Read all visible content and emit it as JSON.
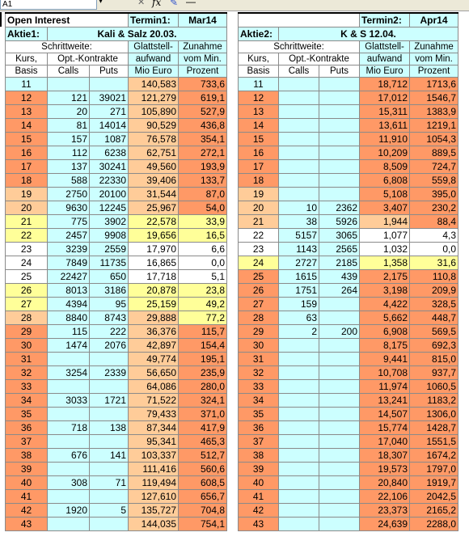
{
  "formula_bar": {
    "name_box": "A1",
    "fx": "fx"
  },
  "header": {
    "title": "Open Interest",
    "termin1_label": "Termin1:",
    "termin1_value": "Mar14",
    "termin2_label": "Termin2:",
    "termin2_value": "Apr14",
    "aktie1_label": "Aktie1:",
    "aktie1_value": "Kali & Salz 20.03.",
    "aktie2_label": "Aktie2:",
    "aktie2_value": "K & S 12.04."
  },
  "columns": {
    "schrittweite": "Schrittweite:",
    "glattstell": "Glattstell-",
    "zunahme": "Zunahme",
    "kurs": "Kurs,",
    "optkontrakte": "Opt.-Kontrakte",
    "aufwand": "aufwand",
    "vommin": "vom Min.",
    "basis": "Basis",
    "calls": "Calls",
    "puts": "Puts",
    "mioeuro": "Mio Euro",
    "prozent": "Prozent"
  },
  "left_rows": [
    {
      "k": "11",
      "c": "",
      "p": "",
      "g": "140,583",
      "z": "733,6",
      "kc": "cyan",
      "gc": "pink",
      "zc": "orange"
    },
    {
      "k": "12",
      "c": "121",
      "p": "39021",
      "g": "121,279",
      "z": "619,1",
      "kc": "orange",
      "gc": "pink",
      "zc": "orange"
    },
    {
      "k": "13",
      "c": "20",
      "p": "271",
      "g": "105,890",
      "z": "527,9",
      "kc": "orange",
      "gc": "pink",
      "zc": "orange"
    },
    {
      "k": "14",
      "c": "81",
      "p": "14014",
      "g": "90,529",
      "z": "436,8",
      "kc": "orange",
      "gc": "pink",
      "zc": "orange"
    },
    {
      "k": "15",
      "c": "157",
      "p": "1087",
      "g": "76,578",
      "z": "354,1",
      "kc": "orange",
      "gc": "pink",
      "zc": "orange"
    },
    {
      "k": "16",
      "c": "112",
      "p": "6238",
      "g": "62,751",
      "z": "272,1",
      "kc": "orange",
      "gc": "pink",
      "zc": "orange"
    },
    {
      "k": "17",
      "c": "137",
      "p": "30241",
      "g": "49,560",
      "z": "193,9",
      "kc": "orange",
      "gc": "pink",
      "zc": "orange"
    },
    {
      "k": "18",
      "c": "588",
      "p": "22330",
      "g": "39,406",
      "z": "133,7",
      "kc": "orange",
      "gc": "pink",
      "zc": "orange"
    },
    {
      "k": "19",
      "c": "2750",
      "p": "20100",
      "g": "31,544",
      "z": "87,0",
      "kc": "pink",
      "gc": "pink",
      "zc": "orange"
    },
    {
      "k": "20",
      "c": "9630",
      "p": "12245",
      "g": "25,967",
      "z": "54,0",
      "kc": "pink",
      "gc": "pink",
      "zc": "orange"
    },
    {
      "k": "21",
      "c": "775",
      "p": "3902",
      "g": "22,578",
      "z": "33,9",
      "kc": "yellow",
      "gc": "yellow",
      "zc": "yellow"
    },
    {
      "k": "22",
      "c": "2457",
      "p": "9908",
      "g": "19,656",
      "z": "16,5",
      "kc": "yellow",
      "gc": "yellow",
      "zc": "yellow"
    },
    {
      "k": "23",
      "c": "3239",
      "p": "2559",
      "g": "17,970",
      "z": "6,6",
      "kc": "white",
      "gc": "white",
      "zc": "white"
    },
    {
      "k": "24",
      "c": "7849",
      "p": "11735",
      "g": "16,865",
      "z": "0,0",
      "kc": "white",
      "gc": "white",
      "zc": "white"
    },
    {
      "k": "25",
      "c": "22427",
      "p": "650",
      "g": "17,718",
      "z": "5,1",
      "kc": "white",
      "gc": "white",
      "zc": "white"
    },
    {
      "k": "26",
      "c": "8013",
      "p": "3186",
      "g": "20,878",
      "z": "23,8",
      "kc": "yellow",
      "gc": "yellow",
      "zc": "yellow"
    },
    {
      "k": "27",
      "c": "4394",
      "p": "95",
      "g": "25,159",
      "z": "49,2",
      "kc": "yellow",
      "gc": "yellow",
      "zc": "yellow"
    },
    {
      "k": "28",
      "c": "8840",
      "p": "8743",
      "g": "29,888",
      "z": "77,2",
      "kc": "pink",
      "gc": "pink",
      "zc": "yellow"
    },
    {
      "k": "29",
      "c": "115",
      "p": "222",
      "g": "36,376",
      "z": "115,7",
      "kc": "orange",
      "gc": "pink",
      "zc": "orange"
    },
    {
      "k": "30",
      "c": "1474",
      "p": "2076",
      "g": "42,897",
      "z": "154,4",
      "kc": "orange",
      "gc": "pink",
      "zc": "orange"
    },
    {
      "k": "31",
      "c": "",
      "p": "",
      "g": "49,774",
      "z": "195,1",
      "kc": "orange",
      "gc": "pink",
      "zc": "orange"
    },
    {
      "k": "32",
      "c": "3254",
      "p": "2339",
      "g": "56,650",
      "z": "235,9",
      "kc": "orange",
      "gc": "pink",
      "zc": "orange"
    },
    {
      "k": "33",
      "c": "",
      "p": "",
      "g": "64,086",
      "z": "280,0",
      "kc": "orange",
      "gc": "pink",
      "zc": "orange"
    },
    {
      "k": "34",
      "c": "3033",
      "p": "1721",
      "g": "71,522",
      "z": "324,1",
      "kc": "orange",
      "gc": "pink",
      "zc": "orange"
    },
    {
      "k": "35",
      "c": "",
      "p": "",
      "g": "79,433",
      "z": "371,0",
      "kc": "orange",
      "gc": "pink",
      "zc": "orange"
    },
    {
      "k": "36",
      "c": "718",
      "p": "138",
      "g": "87,344",
      "z": "417,9",
      "kc": "orange",
      "gc": "pink",
      "zc": "orange"
    },
    {
      "k": "37",
      "c": "",
      "p": "",
      "g": "95,341",
      "z": "465,3",
      "kc": "orange",
      "gc": "pink",
      "zc": "orange"
    },
    {
      "k": "38",
      "c": "676",
      "p": "141",
      "g": "103,337",
      "z": "512,7",
      "kc": "orange",
      "gc": "pink",
      "zc": "orange"
    },
    {
      "k": "39",
      "c": "",
      "p": "",
      "g": "111,416",
      "z": "560,6",
      "kc": "orange",
      "gc": "pink",
      "zc": "orange"
    },
    {
      "k": "40",
      "c": "308",
      "p": "71",
      "g": "119,494",
      "z": "608,5",
      "kc": "orange",
      "gc": "pink",
      "zc": "orange"
    },
    {
      "k": "41",
      "c": "",
      "p": "",
      "g": "127,610",
      "z": "656,7",
      "kc": "orange",
      "gc": "pink",
      "zc": "orange"
    },
    {
      "k": "42",
      "c": "1920",
      "p": "5",
      "g": "135,727",
      "z": "704,8",
      "kc": "orange",
      "gc": "pink",
      "zc": "orange"
    },
    {
      "k": "43",
      "c": "",
      "p": "",
      "g": "144,035",
      "z": "754,1",
      "kc": "orange",
      "gc": "pink",
      "zc": "orange"
    }
  ],
  "right_rows": [
    {
      "k": "11",
      "c": "",
      "p": "",
      "g": "18,712",
      "z": "1713,6",
      "kc": "cyan",
      "gc": "orange",
      "zc": "orange"
    },
    {
      "k": "12",
      "c": "",
      "p": "",
      "g": "17,012",
      "z": "1546,7",
      "kc": "orange",
      "gc": "orange",
      "zc": "orange"
    },
    {
      "k": "13",
      "c": "",
      "p": "",
      "g": "15,311",
      "z": "1383,9",
      "kc": "orange",
      "gc": "orange",
      "zc": "orange"
    },
    {
      "k": "14",
      "c": "",
      "p": "",
      "g": "13,611",
      "z": "1219,1",
      "kc": "orange",
      "gc": "orange",
      "zc": "orange"
    },
    {
      "k": "15",
      "c": "",
      "p": "",
      "g": "11,910",
      "z": "1054,3",
      "kc": "orange",
      "gc": "orange",
      "zc": "orange"
    },
    {
      "k": "16",
      "c": "",
      "p": "",
      "g": "10,209",
      "z": "889,5",
      "kc": "orange",
      "gc": "orange",
      "zc": "orange"
    },
    {
      "k": "17",
      "c": "",
      "p": "",
      "g": "8,509",
      "z": "724,7",
      "kc": "orange",
      "gc": "orange",
      "zc": "orange"
    },
    {
      "k": "18",
      "c": "",
      "p": "",
      "g": "6,808",
      "z": "559,8",
      "kc": "orange",
      "gc": "orange",
      "zc": "orange"
    },
    {
      "k": "19",
      "c": "",
      "p": "",
      "g": "5,108",
      "z": "395,0",
      "kc": "pink",
      "gc": "orange",
      "zc": "orange"
    },
    {
      "k": "20",
      "c": "10",
      "p": "2362",
      "g": "3,407",
      "z": "230,2",
      "kc": "pink",
      "gc": "orange",
      "zc": "orange"
    },
    {
      "k": "21",
      "c": "38",
      "p": "5926",
      "g": "1,944",
      "z": "88,4",
      "kc": "pink",
      "gc": "pink",
      "zc": "orange"
    },
    {
      "k": "22",
      "c": "5157",
      "p": "3065",
      "g": "1,077",
      "z": "4,3",
      "kc": "white",
      "gc": "white",
      "zc": "white"
    },
    {
      "k": "23",
      "c": "1143",
      "p": "2565",
      "g": "1,032",
      "z": "0,0",
      "kc": "white",
      "gc": "white",
      "zc": "white"
    },
    {
      "k": "24",
      "c": "2727",
      "p": "2185",
      "g": "1,358",
      "z": "31,6",
      "kc": "yellow",
      "gc": "yellow",
      "zc": "yellow"
    },
    {
      "k": "25",
      "c": "1615",
      "p": "439",
      "g": "2,175",
      "z": "110,8",
      "kc": "orange",
      "gc": "orange",
      "zc": "orange"
    },
    {
      "k": "26",
      "c": "1751",
      "p": "264",
      "g": "3,198",
      "z": "209,9",
      "kc": "orange",
      "gc": "orange",
      "zc": "orange"
    },
    {
      "k": "27",
      "c": "159",
      "p": "",
      "g": "4,422",
      "z": "328,5",
      "kc": "orange",
      "gc": "orange",
      "zc": "orange"
    },
    {
      "k": "28",
      "c": "63",
      "p": "",
      "g": "5,662",
      "z": "448,7",
      "kc": "orange",
      "gc": "orange",
      "zc": "orange"
    },
    {
      "k": "29",
      "c": "2",
      "p": "200",
      "g": "6,908",
      "z": "569,5",
      "kc": "orange",
      "gc": "orange",
      "zc": "orange"
    },
    {
      "k": "30",
      "c": "",
      "p": "",
      "g": "8,175",
      "z": "692,3",
      "kc": "orange",
      "gc": "orange",
      "zc": "orange"
    },
    {
      "k": "31",
      "c": "",
      "p": "",
      "g": "9,441",
      "z": "815,0",
      "kc": "orange",
      "gc": "orange",
      "zc": "orange"
    },
    {
      "k": "32",
      "c": "",
      "p": "",
      "g": "10,708",
      "z": "937,7",
      "kc": "orange",
      "gc": "orange",
      "zc": "orange"
    },
    {
      "k": "33",
      "c": "",
      "p": "",
      "g": "11,974",
      "z": "1060,5",
      "kc": "orange",
      "gc": "orange",
      "zc": "orange"
    },
    {
      "k": "34",
      "c": "",
      "p": "",
      "g": "13,241",
      "z": "1183,2",
      "kc": "orange",
      "gc": "orange",
      "zc": "orange"
    },
    {
      "k": "35",
      "c": "",
      "p": "",
      "g": "14,507",
      "z": "1306,0",
      "kc": "orange",
      "gc": "orange",
      "zc": "orange"
    },
    {
      "k": "36",
      "c": "",
      "p": "",
      "g": "15,774",
      "z": "1428,7",
      "kc": "orange",
      "gc": "orange",
      "zc": "orange"
    },
    {
      "k": "37",
      "c": "",
      "p": "",
      "g": "17,040",
      "z": "1551,5",
      "kc": "orange",
      "gc": "orange",
      "zc": "orange"
    },
    {
      "k": "38",
      "c": "",
      "p": "",
      "g": "18,307",
      "z": "1674,2",
      "kc": "orange",
      "gc": "orange",
      "zc": "orange"
    },
    {
      "k": "39",
      "c": "",
      "p": "",
      "g": "19,573",
      "z": "1797,0",
      "kc": "orange",
      "gc": "orange",
      "zc": "orange"
    },
    {
      "k": "40",
      "c": "",
      "p": "",
      "g": "20,840",
      "z": "1919,7",
      "kc": "orange",
      "gc": "orange",
      "zc": "orange"
    },
    {
      "k": "41",
      "c": "",
      "p": "",
      "g": "22,106",
      "z": "2042,5",
      "kc": "orange",
      "gc": "orange",
      "zc": "orange"
    },
    {
      "k": "42",
      "c": "",
      "p": "",
      "g": "23,373",
      "z": "2165,2",
      "kc": "orange",
      "gc": "orange",
      "zc": "orange"
    },
    {
      "k": "43",
      "c": "",
      "p": "",
      "g": "24,639",
      "z": "2288,0",
      "kc": "orange",
      "gc": "orange",
      "zc": "orange"
    }
  ]
}
